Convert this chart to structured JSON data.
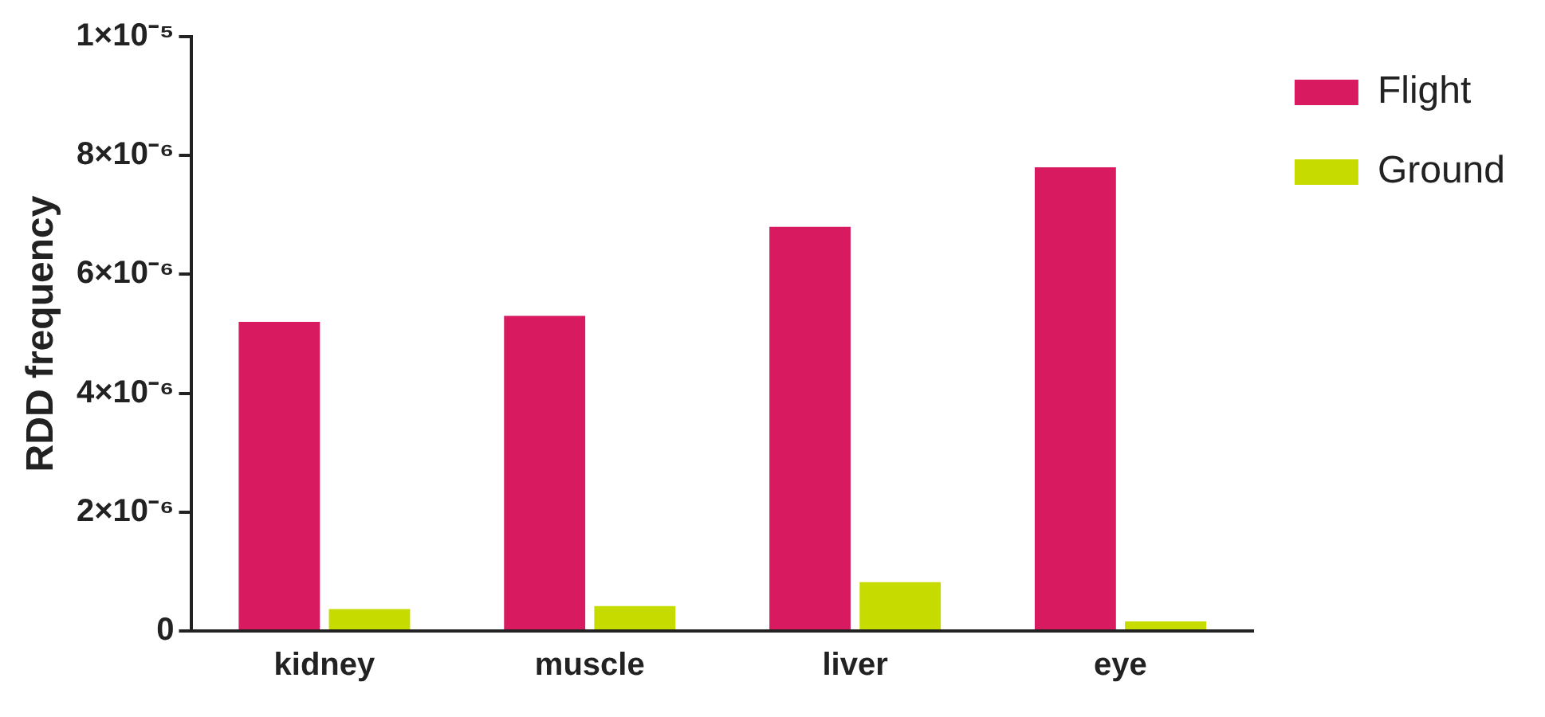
{
  "chart_data": {
    "type": "bar",
    "ylabel": "RDD frequency",
    "categories": [
      "kidney",
      "muscle",
      "liver",
      "eye"
    ],
    "series": [
      {
        "name": "Flight",
        "color": "#d81b60",
        "values": [
          5.2e-06,
          5.3e-06,
          6.8e-06,
          7.8e-06
        ]
      },
      {
        "name": "Ground",
        "color": "#c6db00",
        "values": [
          3.7e-07,
          4.2e-07,
          8.2e-07,
          1.6e-07
        ]
      }
    ],
    "ylim": [
      0,
      1e-05
    ],
    "yticks": [
      0,
      {
        "value": 2e-06,
        "label": "2×10⁻⁶"
      },
      {
        "value": 4e-06,
        "label": "4×10⁻⁶"
      },
      {
        "value": 6e-06,
        "label": "6×10⁻⁶"
      },
      {
        "value": 8e-06,
        "label": "8×10⁻⁶"
      },
      {
        "value": 1e-05,
        "label": "1×10⁻⁵"
      }
    ],
    "grid": false,
    "legend": "top right"
  }
}
